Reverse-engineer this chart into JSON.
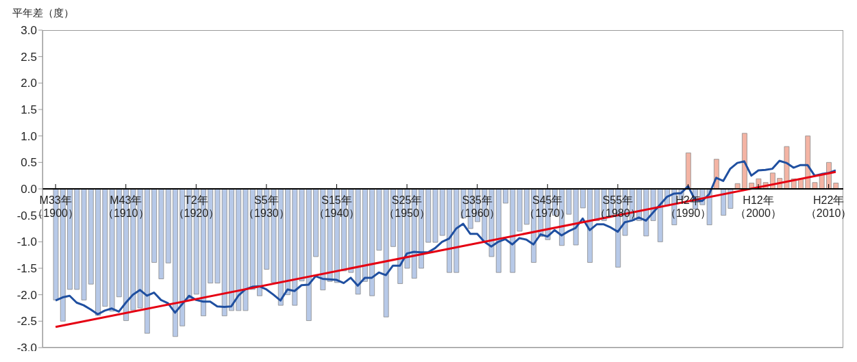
{
  "chart_data": {
    "type": "bar",
    "ylabel": "平年差（度）",
    "categories": [
      "M33年（1900）",
      null,
      null,
      null,
      null,
      null,
      null,
      null,
      null,
      null,
      "M43年（1910）",
      null,
      null,
      null,
      null,
      null,
      null,
      null,
      null,
      null,
      "T2年（1920）",
      null,
      null,
      null,
      null,
      null,
      null,
      null,
      null,
      null,
      "S5年（1930）",
      null,
      null,
      null,
      null,
      null,
      null,
      null,
      null,
      null,
      "S15年（1940）",
      null,
      null,
      null,
      null,
      null,
      null,
      null,
      null,
      null,
      "S25年（1950）",
      null,
      null,
      null,
      null,
      null,
      null,
      null,
      null,
      null,
      "S35年（1960）",
      null,
      null,
      null,
      null,
      null,
      null,
      null,
      null,
      null,
      "S45年（1970）",
      null,
      null,
      null,
      null,
      null,
      null,
      null,
      null,
      null,
      "S55年（1980）",
      null,
      null,
      null,
      null,
      null,
      null,
      null,
      null,
      null,
      "H2年（1990）",
      null,
      null,
      null,
      null,
      null,
      null,
      null,
      null,
      null,
      "H12年（2000）",
      null,
      null,
      null,
      null,
      null,
      null,
      null,
      null,
      null,
      "H22年（2010）",
      null
    ],
    "series": [
      {
        "colors": [
          "#b7c9e8",
          "#b7c9e8",
          "#b7c9e8",
          "#b7c9e8",
          "#b7c9e8",
          "#b7c9e8",
          "#b7c9e8",
          "#b7c9e8",
          "#b7c9e8",
          "#b7c9e8",
          "#b7c9e8",
          "#b7c9e8",
          "#b7c9e8",
          "#b7c9e8",
          "#b7c9e8",
          "#b7c9e8",
          "#b7c9e8",
          "#b7c9e8",
          "#b7c9e8",
          "#b7c9e8",
          "#b7c9e8",
          "#b7c9e8",
          "#b7c9e8",
          "#b7c9e8",
          "#b7c9e8",
          "#b7c9e8",
          "#b7c9e8",
          "#b7c9e8",
          "#b7c9e8",
          "#b7c9e8",
          "#b7c9e8",
          "#b7c9e8",
          "#b7c9e8",
          "#b7c9e8",
          "#b7c9e8",
          "#b7c9e8",
          "#b7c9e8",
          "#b7c9e8",
          "#b7c9e8",
          "#b7c9e8",
          "#b7c9e8",
          "#b7c9e8",
          "#b7c9e8",
          "#b7c9e8",
          "#b7c9e8",
          "#b7c9e8",
          "#b7c9e8",
          "#b7c9e8",
          "#b7c9e8",
          "#b7c9e8",
          "#b7c9e8",
          "#b7c9e8",
          "#b7c9e8",
          "#b7c9e8",
          "#b7c9e8",
          "#b7c9e8",
          "#b7c9e8",
          "#b7c9e8",
          "#b7c9e8",
          "#b7c9e8",
          "#b7c9e8",
          "#b7c9e8",
          "#b7c9e8",
          "#b7c9e8",
          "#b7c9e8",
          "#b7c9e8",
          "#b7c9e8",
          "#b7c9e8",
          "#b7c9e8",
          "#b7c9e8",
          "#b7c9e8",
          "#b7c9e8",
          "#b7c9e8",
          "#b7c9e8",
          "#b7c9e8",
          "#b7c9e8",
          "#b7c9e8",
          "#b7c9e8",
          "#b7c9e8",
          "#b7c9e8",
          "#b7c9e8",
          "#b7c9e8",
          "#b7c9e8",
          "#b7c9e8",
          "#b7c9e8",
          "#b7c9e8",
          "#b7c9e8",
          "#b7c9e8",
          "#b7c9e8",
          "#b7c9e8",
          "#f4b4a4",
          "#b7c9e8",
          "#b7c9e8",
          "#b7c9e8",
          "#f4b4a4",
          "#b7c9e8",
          "#b7c9e8",
          "#f4b4a4",
          "#f4b4a4",
          "#f4b4a4",
          "#f4b4a4",
          "#f4b4a4",
          "#f4b4a4",
          "#f4b4a4",
          "#f4b4a4",
          "#f4b4a4",
          "#f4b4a4",
          "#f4b4a4",
          "#f4b4a4",
          "#f4b4a4",
          "#f4b4a4",
          "#f4b4a4"
        ],
        "values": [
          -2.1,
          -2.5,
          -1.9,
          -1.9,
          -2.1,
          -1.8,
          -2.39,
          -2.22,
          -2.31,
          -2.04,
          -2.49,
          -2.29,
          -2.25,
          -2.73,
          -1.39,
          -1.7,
          -1.4,
          -2.79,
          -2.59,
          -2.1,
          -1.99,
          -2.4,
          -1.78,
          -1.78,
          -2.4,
          -2.3,
          -2.3,
          -2.3,
          -1.9,
          -2.02,
          -1.52,
          -1.77,
          -2.2,
          -2.0,
          -2.2,
          -1.74,
          -2.49,
          -1.28,
          -1.91,
          -1.75,
          -1.77,
          -1.55,
          -1.58,
          -1.99,
          -1.75,
          -2.02,
          -1.16,
          -2.42,
          -1.09,
          -1.79,
          -1.5,
          -1.69,
          -1.5,
          -1.01,
          -1.01,
          -0.88,
          -1.58,
          -1.58,
          -0.55,
          -0.75,
          -0.62,
          -1.0,
          -1.28,
          -1.58,
          -0.27,
          -1.58,
          -0.8,
          -0.67,
          -1.39,
          -0.9,
          -0.96,
          -0.5,
          -1.07,
          -0.48,
          -1.06,
          -0.36,
          -1.39,
          -0.6,
          -0.6,
          -0.5,
          -1.48,
          -0.88,
          -0.6,
          -0.6,
          -0.89,
          -0.6,
          -1.0,
          -0.32,
          -0.68,
          -0.2,
          0.68,
          -0.38,
          -0.3,
          -0.68,
          0.56,
          -0.5,
          -0.37,
          0.1,
          1.05,
          0.11,
          0.19,
          0.12,
          0.3,
          0.2,
          0.8,
          0.19,
          0.19,
          1.0,
          0.12,
          0.28,
          0.5,
          0.11
        ]
      },
      {
        "type": "line",
        "color": "#1f4fa0",
        "values": [
          -2.11,
          -2.05,
          -2.02,
          -2.15,
          -2.2,
          -2.28,
          -2.37,
          -2.3,
          -2.26,
          -2.32,
          -2.15,
          -2.0,
          -1.91,
          -2.02,
          -1.96,
          -2.1,
          -2.16,
          -2.34,
          -2.18,
          -2.02,
          -2.1,
          -2.13,
          -2.13,
          -2.22,
          -2.23,
          -2.22,
          -2.02,
          -1.9,
          -1.85,
          -1.84,
          -1.9,
          -2.0,
          -2.11,
          -1.9,
          -1.93,
          -1.82,
          -1.81,
          -1.65,
          -1.7,
          -1.71,
          -1.72,
          -1.78,
          -1.68,
          -1.83,
          -1.68,
          -1.68,
          -1.58,
          -1.63,
          -1.45,
          -1.45,
          -1.22,
          -1.19,
          -1.2,
          -1.2,
          -1.12,
          -1.0,
          -0.94,
          -0.75,
          -0.66,
          -0.85,
          -0.85,
          -1.0,
          -1.09,
          -1.0,
          -0.95,
          -1.05,
          -0.93,
          -0.96,
          -1.05,
          -0.86,
          -0.9,
          -0.78,
          -0.88,
          -0.8,
          -0.74,
          -0.56,
          -0.78,
          -0.67,
          -0.67,
          -0.73,
          -0.81,
          -0.63,
          -0.6,
          -0.54,
          -0.6,
          -0.45,
          -0.3,
          -0.15,
          -0.09,
          -0.08,
          0.05,
          -0.21,
          -0.23,
          -0.1,
          0.21,
          0.15,
          0.38,
          0.49,
          0.52,
          0.25,
          0.35,
          0.36,
          0.38,
          0.53,
          0.49,
          0.4,
          0.45,
          0.45,
          0.25,
          0.28,
          0.3,
          0.35
        ]
      },
      {
        "type": "line",
        "color": "#e50012",
        "values": [
          -2.61,
          null,
          null,
          null,
          null,
          null,
          null,
          null,
          null,
          null,
          null,
          null,
          null,
          null,
          null,
          null,
          null,
          null,
          null,
          null,
          null,
          null,
          null,
          null,
          null,
          null,
          null,
          null,
          null,
          null,
          null,
          null,
          null,
          null,
          null,
          null,
          null,
          null,
          null,
          null,
          null,
          null,
          null,
          null,
          null,
          null,
          null,
          null,
          null,
          null,
          null,
          null,
          null,
          null,
          null,
          null,
          null,
          null,
          null,
          null,
          null,
          null,
          null,
          null,
          null,
          null,
          null,
          null,
          null,
          null,
          null,
          null,
          null,
          null,
          null,
          null,
          null,
          null,
          null,
          null,
          null,
          null,
          null,
          null,
          null,
          null,
          null,
          null,
          null,
          null,
          null,
          null,
          null,
          null,
          null,
          null,
          null,
          null,
          null,
          null,
          null,
          null,
          null,
          null,
          null,
          null,
          null,
          null,
          null,
          null,
          null,
          0.32
        ]
      }
    ],
    "ylim": [
      -3,
      3
    ],
    "yticks": [
      {
        "value": 3,
        "label": "3.0"
      },
      {
        "value": 2.5,
        "label": "2.5"
      },
      {
        "value": 2,
        "label": "2.0"
      },
      {
        "value": 1.5,
        "label": "1.5"
      },
      {
        "value": 1,
        "label": "1.0"
      },
      {
        "value": 0.5,
        "label": "0.5"
      },
      {
        "value": 0,
        "label": "0.0"
      },
      {
        "value": -0.5,
        "label": "-0.5"
      },
      {
        "value": -1,
        "label": "-1.0"
      },
      {
        "value": -1.5,
        "label": "-1.5"
      },
      {
        "value": -2,
        "label": "-2.0"
      },
      {
        "value": -2.5,
        "label": "-2.5"
      },
      {
        "value": -3,
        "label": "-3.0"
      }
    ],
    "line_style": "solid"
  }
}
